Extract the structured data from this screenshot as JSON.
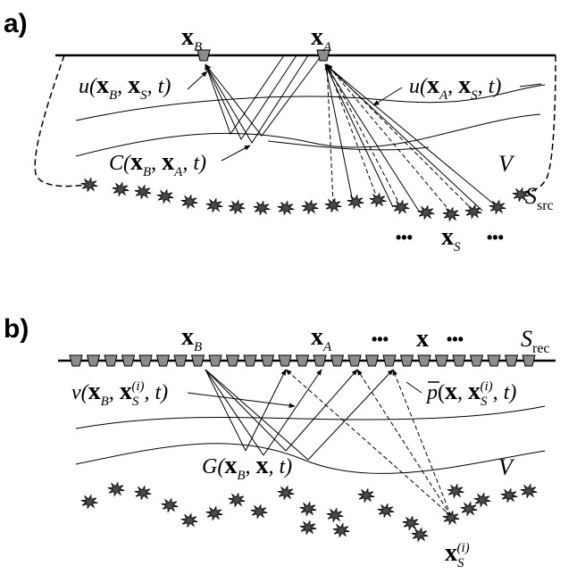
{
  "panel_a": {
    "label": "a)",
    "receiver_b": [
      "x",
      "B"
    ],
    "receiver_a": [
      "x",
      "A"
    ],
    "wavefield_b": [
      "u(",
      "x",
      "B",
      ", ",
      "x",
      "S",
      ", t)"
    ],
    "wavefield_a": [
      "u(",
      "x",
      "A",
      ", ",
      "x",
      "S",
      ", t)"
    ],
    "correlation": [
      "C(",
      "x",
      "B",
      ", ",
      "x",
      "A",
      ", t)"
    ],
    "volume": "V",
    "source_surface": [
      "S",
      "src"
    ],
    "dots_left": "•••",
    "source": [
      "x",
      "S"
    ],
    "dots_right": "•••"
  },
  "panel_b": {
    "label": "b)",
    "receiver_b": [
      "x",
      "B"
    ],
    "receiver_a": [
      "x",
      "A"
    ],
    "dots_left": "•••",
    "receiver_x": "x",
    "dots_right": "•••",
    "receiver_surface": [
      "S",
      "rec"
    ],
    "wavefield_v": [
      "v(",
      "x",
      "B",
      ", ",
      "x",
      "S",
      "(i)",
      ", t)"
    ],
    "wavefield_p": [
      "p",
      "(",
      "x",
      ", ",
      "x",
      "S",
      "(i)",
      ", t)"
    ],
    "green": [
      "G(",
      "x",
      "B",
      ", ",
      "x",
      ", t)"
    ],
    "volume": "V",
    "source": [
      "x",
      "S",
      "(i)"
    ]
  }
}
